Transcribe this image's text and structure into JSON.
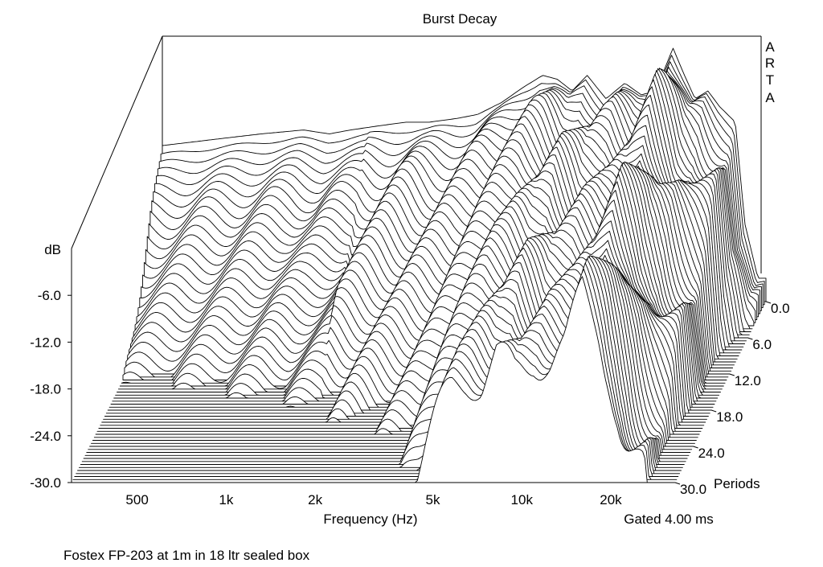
{
  "chart_data": {
    "type": "waterfall",
    "title": "Burst Decay",
    "watermark": [
      "A",
      "R",
      "T",
      "A"
    ],
    "xlabel": "Frequency (Hz)",
    "x_scale": "log",
    "x_range_hz": [
      300,
      33000
    ],
    "x_ticks": [
      {
        "value": 500,
        "label": "500"
      },
      {
        "value": 1000,
        "label": "1k"
      },
      {
        "value": 2000,
        "label": "2k"
      },
      {
        "value": 5000,
        "label": "5k"
      },
      {
        "value": 10000,
        "label": "10k"
      },
      {
        "value": 20000,
        "label": "20k"
      }
    ],
    "ylabel": "dB",
    "y_range_db": [
      -30,
      0
    ],
    "y_ticks": [
      {
        "value": -6,
        "label": "-6.0"
      },
      {
        "value": -12,
        "label": "-12.0"
      },
      {
        "value": -18,
        "label": "-18.0"
      },
      {
        "value": -24,
        "label": "-24.0"
      },
      {
        "value": -30,
        "label": "-30.0"
      }
    ],
    "z_label": "Periods",
    "z_range_periods": [
      0,
      30
    ],
    "z_ticks": [
      {
        "value": 0,
        "label": "0.0"
      },
      {
        "value": 6,
        "label": "6.0"
      },
      {
        "value": 12,
        "label": "12.0"
      },
      {
        "value": 18,
        "label": "18.0"
      },
      {
        "value": 24,
        "label": "24.0"
      },
      {
        "value": 30,
        "label": "30.0"
      }
    ],
    "periods_suffix": "Periods",
    "gate_label": "Gated 4.00 ms",
    "footer": "Fostex FP-203 at 1m in 18 ltr sealed box",
    "approx_initial_response_db": {
      "freq_hz": [
        300,
        500,
        650,
        900,
        1100,
        1300,
        1600,
        2000,
        2400,
        3000,
        3500,
        4200,
        5000,
        5800,
        6500,
        7300,
        8200,
        9500,
        11000,
        12500,
        14000,
        16000,
        17500,
        19000,
        21000,
        23000,
        26000,
        28000,
        31000
      ],
      "level_db": [
        -10,
        -9,
        -8.5,
        -8,
        -8.5,
        -8,
        -7.5,
        -7,
        -7,
        -6.5,
        -6,
        -4.5,
        -2.5,
        -1,
        -1.5,
        -3,
        -1,
        -4,
        -2,
        -3.5,
        -3,
        2.5,
        -1,
        -4,
        -3,
        -5,
        -7,
        -20,
        -27
      ]
    }
  }
}
